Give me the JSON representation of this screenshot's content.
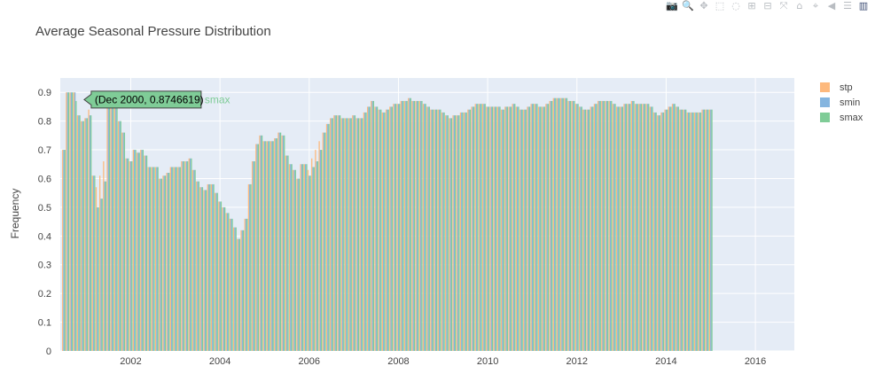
{
  "chart_data": {
    "type": "bar",
    "title": "Average Seasonal Pressure Distribution",
    "xlabel": "",
    "ylabel": "Frequency",
    "ylim": [
      0,
      0.95
    ],
    "yticks": [
      "0",
      "0.1",
      "0.2",
      "0.3",
      "0.4",
      "0.5",
      "0.6",
      "0.7",
      "0.8",
      "0.9"
    ],
    "xticks": [
      "2002",
      "2004",
      "2006",
      "2008",
      "2010",
      "2012",
      "2014",
      "2016"
    ],
    "x_start": "2000-07",
    "x_end": "2016-10",
    "grid": true,
    "legend_position": "right-top",
    "hover": {
      "series": "smax",
      "text": "(Dec 2000, 0.8746619)",
      "x": "2000-12",
      "y": 0.8746619
    },
    "series": [
      {
        "name": "stp",
        "color": "#fdb97d",
        "values": [
          0.7,
          0.9,
          0.9,
          0.9,
          0.82,
          0.8,
          0.81,
          0.84,
          0.61,
          0.57,
          0.61,
          0.66,
          0.9,
          0.9,
          0.89,
          0.8,
          0.76,
          0.67,
          0.66,
          0.7,
          0.69,
          0.7,
          0.68,
          0.64,
          0.64,
          0.64,
          0.6,
          0.61,
          0.62,
          0.64,
          0.64,
          0.64,
          0.66,
          0.66,
          0.67,
          0.63,
          0.59,
          0.57,
          0.56,
          0.58,
          0.58,
          0.55,
          0.52,
          0.5,
          0.48,
          0.46,
          0.43,
          0.39,
          0.42,
          0.46,
          0.58,
          0.66,
          0.72,
          0.75,
          0.73,
          0.73,
          0.73,
          0.74,
          0.76,
          0.75,
          0.68,
          0.65,
          0.63,
          0.6,
          0.65,
          0.65,
          0.63,
          0.67,
          0.7,
          0.73,
          0.76,
          0.79,
          0.81,
          0.82,
          0.82,
          0.81,
          0.81,
          0.81,
          0.82,
          0.81,
          0.81,
          0.83,
          0.85,
          0.87,
          0.85,
          0.84,
          0.83,
          0.84,
          0.85,
          0.86,
          0.86,
          0.87,
          0.87,
          0.88,
          0.87,
          0.87,
          0.87,
          0.86,
          0.85,
          0.84,
          0.84,
          0.84,
          0.83,
          0.82,
          0.81,
          0.82,
          0.82,
          0.83,
          0.83,
          0.84,
          0.85,
          0.86,
          0.86,
          0.86,
          0.85,
          0.85,
          0.85,
          0.85,
          0.84,
          0.85,
          0.85,
          0.86,
          0.85,
          0.84,
          0.84,
          0.85,
          0.86,
          0.86,
          0.85,
          0.85,
          0.86,
          0.87,
          0.88,
          0.88,
          0.88,
          0.88,
          0.87,
          0.87,
          0.86,
          0.85,
          0.84,
          0.84,
          0.85,
          0.86,
          0.87,
          0.87,
          0.87,
          0.87,
          0.86,
          0.85,
          0.85,
          0.86,
          0.86,
          0.87,
          0.86,
          0.86,
          0.86,
          0.86,
          0.85,
          0.83,
          0.82,
          0.83,
          0.84,
          0.85,
          0.86,
          0.85,
          0.84,
          0.84,
          0.83,
          0.83,
          0.83,
          0.83,
          0.84,
          0.84,
          0.84
        ]
      },
      {
        "name": "smin",
        "color": "#85b5df",
        "values": [
          0.7,
          0.9,
          0.9,
          0.9,
          0.82,
          0.8,
          0.81,
          0.82,
          0.61,
          0.5,
          0.53,
          0.59,
          0.9,
          0.9,
          0.89,
          0.8,
          0.76,
          0.67,
          0.66,
          0.7,
          0.69,
          0.7,
          0.68,
          0.64,
          0.64,
          0.64,
          0.6,
          0.61,
          0.62,
          0.64,
          0.64,
          0.64,
          0.66,
          0.66,
          0.67,
          0.63,
          0.59,
          0.57,
          0.56,
          0.58,
          0.58,
          0.55,
          0.52,
          0.5,
          0.48,
          0.46,
          0.43,
          0.39,
          0.42,
          0.46,
          0.58,
          0.66,
          0.72,
          0.75,
          0.73,
          0.73,
          0.73,
          0.74,
          0.76,
          0.75,
          0.68,
          0.65,
          0.63,
          0.6,
          0.65,
          0.65,
          0.61,
          0.64,
          0.66,
          0.7,
          0.76,
          0.79,
          0.81,
          0.82,
          0.82,
          0.81,
          0.81,
          0.81,
          0.82,
          0.81,
          0.81,
          0.83,
          0.85,
          0.87,
          0.85,
          0.84,
          0.83,
          0.84,
          0.85,
          0.86,
          0.86,
          0.87,
          0.87,
          0.88,
          0.87,
          0.87,
          0.87,
          0.86,
          0.85,
          0.84,
          0.84,
          0.84,
          0.83,
          0.82,
          0.81,
          0.82,
          0.82,
          0.83,
          0.83,
          0.84,
          0.85,
          0.86,
          0.86,
          0.86,
          0.85,
          0.85,
          0.85,
          0.85,
          0.84,
          0.85,
          0.85,
          0.86,
          0.85,
          0.84,
          0.84,
          0.85,
          0.86,
          0.86,
          0.85,
          0.85,
          0.86,
          0.87,
          0.88,
          0.88,
          0.88,
          0.88,
          0.87,
          0.87,
          0.86,
          0.85,
          0.84,
          0.84,
          0.85,
          0.86,
          0.87,
          0.87,
          0.87,
          0.87,
          0.86,
          0.85,
          0.85,
          0.86,
          0.86,
          0.87,
          0.86,
          0.86,
          0.86,
          0.86,
          0.85,
          0.83,
          0.82,
          0.83,
          0.84,
          0.85,
          0.86,
          0.85,
          0.84,
          0.84,
          0.83,
          0.83,
          0.83,
          0.83,
          0.84,
          0.84,
          0.84
        ]
      },
      {
        "name": "smax",
        "color": "#7fcc97",
        "values": [
          0.7,
          0.9,
          0.9,
          0.87,
          0.82,
          0.8,
          0.81,
          0.82,
          0.61,
          0.5,
          0.53,
          0.59,
          0.9,
          0.9,
          0.89,
          0.8,
          0.76,
          0.67,
          0.66,
          0.7,
          0.69,
          0.7,
          0.68,
          0.64,
          0.64,
          0.64,
          0.6,
          0.61,
          0.62,
          0.64,
          0.64,
          0.64,
          0.66,
          0.66,
          0.67,
          0.63,
          0.59,
          0.57,
          0.56,
          0.58,
          0.58,
          0.55,
          0.52,
          0.5,
          0.48,
          0.46,
          0.43,
          0.39,
          0.42,
          0.46,
          0.58,
          0.66,
          0.72,
          0.75,
          0.73,
          0.73,
          0.73,
          0.74,
          0.76,
          0.75,
          0.68,
          0.65,
          0.63,
          0.6,
          0.65,
          0.65,
          0.61,
          0.64,
          0.66,
          0.7,
          0.76,
          0.79,
          0.81,
          0.82,
          0.82,
          0.81,
          0.81,
          0.81,
          0.82,
          0.81,
          0.81,
          0.83,
          0.85,
          0.87,
          0.85,
          0.84,
          0.83,
          0.84,
          0.85,
          0.86,
          0.86,
          0.87,
          0.87,
          0.88,
          0.87,
          0.87,
          0.87,
          0.86,
          0.85,
          0.84,
          0.84,
          0.84,
          0.83,
          0.82,
          0.81,
          0.82,
          0.82,
          0.83,
          0.83,
          0.84,
          0.85,
          0.86,
          0.86,
          0.86,
          0.85,
          0.85,
          0.85,
          0.85,
          0.84,
          0.85,
          0.85,
          0.86,
          0.85,
          0.84,
          0.84,
          0.85,
          0.86,
          0.86,
          0.85,
          0.85,
          0.86,
          0.87,
          0.88,
          0.88,
          0.88,
          0.88,
          0.87,
          0.87,
          0.86,
          0.85,
          0.84,
          0.84,
          0.85,
          0.86,
          0.87,
          0.87,
          0.87,
          0.87,
          0.86,
          0.85,
          0.85,
          0.86,
          0.86,
          0.87,
          0.86,
          0.86,
          0.86,
          0.86,
          0.85,
          0.83,
          0.82,
          0.83,
          0.84,
          0.85,
          0.86,
          0.85,
          0.84,
          0.84,
          0.83,
          0.83,
          0.83,
          0.83,
          0.84,
          0.84,
          0.84
        ]
      }
    ]
  },
  "modebar": [
    {
      "name": "camera-icon",
      "glyph": "📷"
    },
    {
      "name": "zoom-icon",
      "glyph": "🔍"
    },
    {
      "name": "pan-icon",
      "glyph": "✥"
    },
    {
      "name": "box-select-icon",
      "glyph": "⬚"
    },
    {
      "name": "lasso-select-icon",
      "glyph": "◌"
    },
    {
      "name": "zoom-in-icon",
      "glyph": "⊞"
    },
    {
      "name": "zoom-out-icon",
      "glyph": "⊟"
    },
    {
      "name": "autoscale-icon",
      "glyph": "⤧"
    },
    {
      "name": "home-icon",
      "glyph": "⌂"
    },
    {
      "name": "spike-lines-icon",
      "glyph": "⌖"
    },
    {
      "name": "hover-closest-icon",
      "glyph": "◀"
    },
    {
      "name": "hover-compare-icon",
      "glyph": "☰"
    },
    {
      "name": "plotly-logo-icon",
      "glyph": "▥"
    }
  ]
}
